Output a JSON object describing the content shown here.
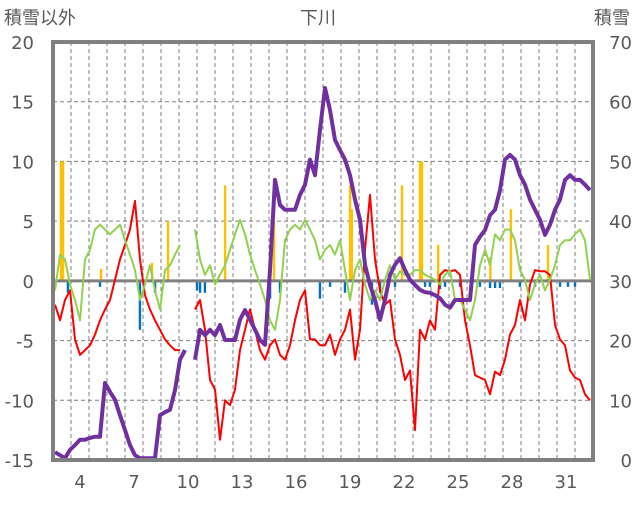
{
  "chart_data": {
    "type": "line",
    "title": "下川",
    "ylabel_left": "積雪以外",
    "ylabel_right": "積雪",
    "xlim": [
      3,
      33
    ],
    "ylim_left": [
      -15,
      20
    ],
    "ylim_right": [
      0,
      70
    ],
    "yticks_left": [
      "-15",
      "-10",
      "-5",
      "0",
      "5",
      "10",
      "15",
      "20"
    ],
    "yticks_left_values": [
      -15,
      -10,
      -5,
      0,
      5,
      10,
      15,
      20
    ],
    "yticks_right": [
      "0",
      "10",
      "20",
      "30",
      "40",
      "50",
      "60",
      "70"
    ],
    "yticks_right_values": [
      0,
      10,
      20,
      30,
      40,
      50,
      60,
      70
    ],
    "xticks": [
      "4",
      "7",
      "10",
      "13",
      "16",
      "19",
      "22",
      "25",
      "28",
      "31"
    ],
    "xticks_values": [
      4,
      7,
      10,
      13,
      16,
      19,
      22,
      25,
      28,
      31
    ],
    "grid": true,
    "sample_start_day": 3.11,
    "sample_step_day": 0.2778,
    "colors": {
      "red": "#ff0000",
      "green": "#92d050",
      "purple": "#7030a0",
      "orange": "#ffc000",
      "blue": "#0070c0",
      "frame": "#808080"
    },
    "series": [
      {
        "name": "red",
        "axis": "left",
        "color": "#ff0000",
        "width": 2,
        "values": [
          -2.0,
          -3.3,
          -1.6,
          -0.8,
          -4.9,
          -6.2,
          -5.8,
          -5.4,
          -4.5,
          -3.3,
          -2.4,
          -1.6,
          0.1,
          1.8,
          3.0,
          4.3,
          6.7,
          1.8,
          -1.2,
          -2.4,
          -3.3,
          -4.1,
          -4.9,
          -5.4,
          -5.8,
          -5.8,
          null,
          null,
          -2.4,
          -1.6,
          -4.1,
          -8.3,
          -9.1,
          -13.3,
          -10.0,
          -10.4,
          -9.1,
          -5.8,
          -4.1,
          -2.4,
          -4.1,
          -5.8,
          -6.6,
          -5.4,
          -4.9,
          -6.2,
          -6.6,
          -5.4,
          -3.3,
          -1.6,
          -0.8,
          -4.9,
          -4.9,
          -5.4,
          -5.4,
          -4.5,
          -6.2,
          -4.9,
          -4.1,
          -2.4,
          -6.6,
          -4.1,
          2.6,
          7.2,
          1.8,
          -0.8,
          -2.0,
          -1.6,
          -4.9,
          -6.2,
          -8.3,
          -7.5,
          -12.5,
          -4.1,
          -4.9,
          -3.3,
          -4.1,
          0.5,
          0.9,
          0.8,
          0.9,
          0.5,
          -3.3,
          -5.4,
          -7.9,
          -8.1,
          -8.3,
          -9.5,
          -7.6,
          -7.9,
          -6.6,
          -4.5,
          -3.7,
          -1.6,
          -3.3,
          -0.3,
          0.9,
          0.8,
          0.8,
          0.5,
          -3.7,
          -4.9,
          -5.4,
          -7.5,
          -8.1,
          -8.3,
          -9.5,
          -10.0
        ]
      },
      {
        "name": "green",
        "axis": "left",
        "color": "#92d050",
        "width": 2,
        "values": [
          -0.8,
          2.2,
          1.8,
          -0.3,
          -1.6,
          -3.3,
          1.8,
          2.6,
          4.3,
          4.7,
          4.3,
          3.9,
          4.3,
          4.7,
          3.4,
          2.2,
          0.9,
          -1.6,
          -0.3,
          1.3,
          -0.8,
          -2.4,
          0.9,
          1.3,
          2.2,
          3.0,
          null,
          null,
          4.3,
          1.8,
          0.5,
          1.3,
          -0.3,
          0.5,
          1.3,
          2.6,
          3.9,
          5.1,
          3.9,
          2.2,
          0.9,
          -0.3,
          -1.6,
          -3.3,
          -4.1,
          -1.6,
          3.4,
          4.3,
          4.7,
          4.3,
          5.1,
          4.3,
          3.4,
          1.8,
          2.6,
          3.0,
          2.2,
          3.4,
          0.9,
          -1.6,
          0.9,
          1.8,
          -0.3,
          -1.6,
          -0.8,
          -1.6,
          0.1,
          1.3,
          0.1,
          0.8,
          0.5,
          0.5,
          0.9,
          0.9,
          0.5,
          0.3,
          0.1,
          -0.3,
          0.5,
          0.9,
          -1.6,
          -1.6,
          -2.4,
          -3.3,
          -1.6,
          1.3,
          2.6,
          1.3,
          3.9,
          3.4,
          4.3,
          4.3,
          3.4,
          0.9,
          0.1,
          -1.6,
          -0.3,
          0.5,
          -0.8,
          0.1,
          1.3,
          3.0,
          3.4,
          3.4,
          3.9,
          4.3,
          3.4,
          0.1
        ]
      },
      {
        "name": "purple",
        "axis": "right",
        "color": "#7030a0",
        "width": 4,
        "values": [
          1.3,
          0.8,
          0.3,
          1.7,
          2.5,
          3.4,
          3.4,
          3.7,
          3.9,
          3.9,
          12.9,
          11.4,
          10.1,
          7.5,
          5.0,
          2.5,
          0.8,
          0.3,
          0.3,
          0.3,
          0.3,
          7.5,
          8.0,
          8.4,
          11.7,
          16.8,
          18.4,
          null,
          16.8,
          21.8,
          20.9,
          21.8,
          20.9,
          22.6,
          20.1,
          20.1,
          20.1,
          23.5,
          25.1,
          23.5,
          21.8,
          20.1,
          19.3,
          31.8,
          46.9,
          42.7,
          41.9,
          41.9,
          41.9,
          44.4,
          46.1,
          50.3,
          47.7,
          55.3,
          62.3,
          58.6,
          53.6,
          51.9,
          50.3,
          47.7,
          43.6,
          40.2,
          32.7,
          29.3,
          26.8,
          23.5,
          26.8,
          31.0,
          32.7,
          33.8,
          31.8,
          30.2,
          29.3,
          28.5,
          28.1,
          28.0,
          27.6,
          27.1,
          26.0,
          25.5,
          26.8,
          26.8,
          26.8,
          26.8,
          36.0,
          37.4,
          38.5,
          41.0,
          41.9,
          45.2,
          50.3,
          51.1,
          50.3,
          47.7,
          46.1,
          43.6,
          41.9,
          40.2,
          37.7,
          39.4,
          41.9,
          43.6,
          46.9,
          47.7,
          46.9,
          46.9,
          46.1,
          45.2
        ]
      }
    ],
    "bars": [
      {
        "name": "orange",
        "axis": "left",
        "color": "#ffc000",
        "points": [
          [
            3.44,
            10
          ],
          [
            3.56,
            10
          ],
          [
            5.67,
            1
          ],
          [
            8.5,
            1.5
          ],
          [
            9.39,
            5
          ],
          [
            12.56,
            8
          ],
          [
            15.28,
            5
          ],
          [
            19.5,
            8
          ],
          [
            19.6,
            6
          ],
          [
            22.39,
            8
          ],
          [
            23.39,
            10
          ],
          [
            23.5,
            10
          ],
          [
            24.4,
            3
          ],
          [
            27.3,
            2
          ],
          [
            28.44,
            6
          ],
          [
            30.5,
            3
          ]
        ]
      },
      {
        "name": "blue",
        "axis": "left",
        "color": "#0070c0",
        "points": [
          [
            3.83,
            -1
          ],
          [
            5.61,
            -0.5
          ],
          [
            7.83,
            -4.1
          ],
          [
            8.67,
            -1
          ],
          [
            11.0,
            -0.8
          ],
          [
            11.17,
            -1
          ],
          [
            11.44,
            -1
          ],
          [
            15.06,
            -1.5
          ],
          [
            15.61,
            -1
          ],
          [
            17.83,
            -1.5
          ],
          [
            18.39,
            -0.5
          ],
          [
            19.22,
            -1
          ],
          [
            20.72,
            -2
          ],
          [
            21.17,
            -1
          ],
          [
            22.0,
            -0.5
          ],
          [
            23.67,
            -0.5
          ],
          [
            23.94,
            -0.5
          ],
          [
            24.5,
            -0.7
          ],
          [
            24.78,
            -0.5
          ],
          [
            25.61,
            -0.5
          ],
          [
            26.72,
            -0.5
          ],
          [
            27.28,
            -0.6
          ],
          [
            27.56,
            -0.6
          ],
          [
            27.83,
            -0.6
          ],
          [
            28.94,
            -0.5
          ],
          [
            29.78,
            -0.5
          ],
          [
            31.17,
            -0.5
          ],
          [
            31.61,
            -0.5
          ],
          [
            32.0,
            -0.5
          ]
        ]
      }
    ]
  }
}
